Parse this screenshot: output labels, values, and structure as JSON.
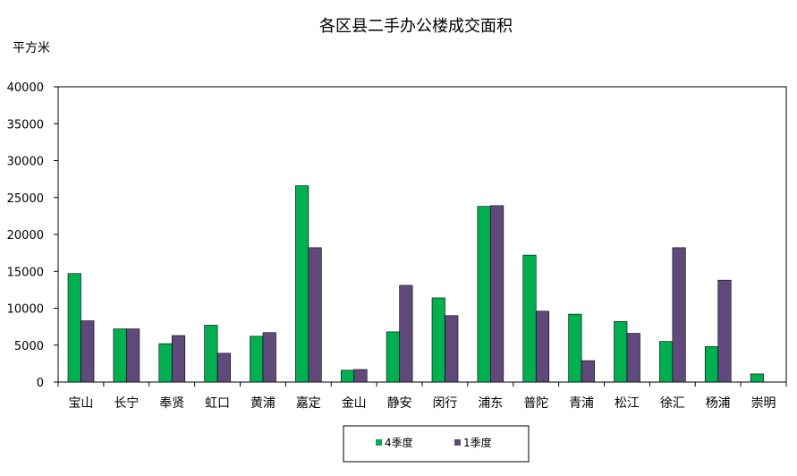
{
  "chart_data": {
    "type": "bar",
    "title": "各区县二手办公楼成交面积",
    "ylabel": "平方米",
    "xlabel": "",
    "ylim": [
      0,
      40000
    ],
    "yticks": [
      0,
      5000,
      10000,
      15000,
      20000,
      25000,
      30000,
      35000,
      40000
    ],
    "grid": false,
    "legend_position": "bottom-center",
    "categories": [
      "宝山",
      "长宁",
      "奉贤",
      "虹口",
      "黄浦",
      "嘉定",
      "金山",
      "静安",
      "闵行",
      "浦东",
      "普陀",
      "青浦",
      "松江",
      "徐汇",
      "杨浦",
      "崇明"
    ],
    "series": [
      {
        "name": "4季度",
        "color": "#00b050",
        "values": [
          14700,
          7200,
          5200,
          7700,
          6200,
          26600,
          1600,
          6800,
          11400,
          23800,
          17200,
          9200,
          8200,
          5500,
          4800,
          1100
        ]
      },
      {
        "name": "1季度",
        "color": "#604a7b",
        "values": [
          8300,
          7200,
          6300,
          3900,
          6700,
          18200,
          1700,
          13100,
          9000,
          23900,
          9600,
          2900,
          6600,
          18200,
          13800,
          0
        ]
      }
    ]
  }
}
